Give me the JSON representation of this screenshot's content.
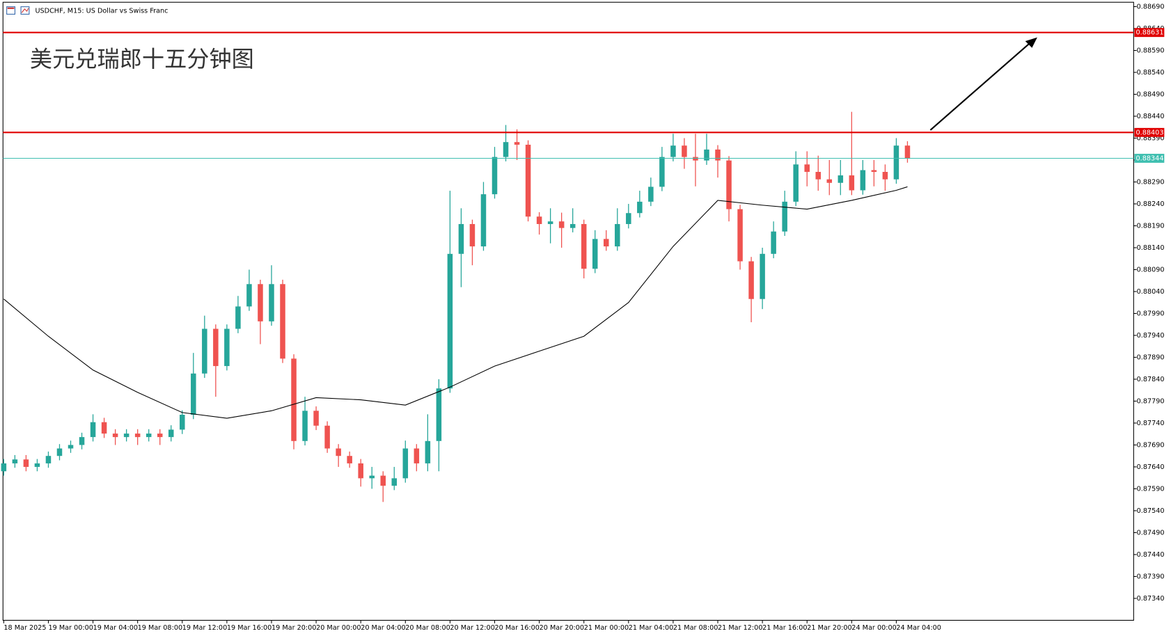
{
  "chart_data": {
    "type": "candlestick",
    "header": "USDCHF, M15:  US Dollar vs Swiss Franc",
    "title": "美元兑瑞郎十五分钟图",
    "up_color": "#26a69a",
    "down_color": "#ef5350",
    "ma_color": "#000000",
    "ylim": [
      0.8729,
      0.887
    ],
    "yticks": [
      {
        "value": 0.8869,
        "label": "0.88690"
      },
      {
        "value": 0.8864,
        "label": "0.88640"
      },
      {
        "value": 0.8859,
        "label": "0.88590"
      },
      {
        "value": 0.8854,
        "label": "0.88540"
      },
      {
        "value": 0.8849,
        "label": "0.88490"
      },
      {
        "value": 0.8844,
        "label": "0.88440"
      },
      {
        "value": 0.8839,
        "label": "0.88390"
      },
      {
        "value": 0.8834,
        "label": "0.88340"
      },
      {
        "value": 0.8829,
        "label": "0.88290"
      },
      {
        "value": 0.8824,
        "label": "0.88240"
      },
      {
        "value": 0.8819,
        "label": "0.88190"
      },
      {
        "value": 0.8814,
        "label": "0.88140"
      },
      {
        "value": 0.8809,
        "label": "0.88090"
      },
      {
        "value": 0.8804,
        "label": "0.88040"
      },
      {
        "value": 0.8799,
        "label": "0.87990"
      },
      {
        "value": 0.8794,
        "label": "0.87940"
      },
      {
        "value": 0.8789,
        "label": "0.87890"
      },
      {
        "value": 0.8784,
        "label": "0.87840"
      },
      {
        "value": 0.8779,
        "label": "0.87790"
      },
      {
        "value": 0.8774,
        "label": "0.87740"
      },
      {
        "value": 0.8769,
        "label": "0.87690"
      },
      {
        "value": 0.8764,
        "label": "0.87640"
      },
      {
        "value": 0.8759,
        "label": "0.87590"
      },
      {
        "value": 0.8754,
        "label": "0.87540"
      },
      {
        "value": 0.8749,
        "label": "0.87490"
      },
      {
        "value": 0.8744,
        "label": "0.87440"
      },
      {
        "value": 0.8739,
        "label": "0.87390"
      },
      {
        "value": 0.8734,
        "label": "0.87340"
      }
    ],
    "x_labels": [
      "18 Mar 2025",
      "19 Mar 00:00",
      "19 Mar 04:00",
      "19 Mar 08:00",
      "19 Mar 12:00",
      "19 Mar 16:00",
      "19 Mar 20:00",
      "20 Mar 00:00",
      "20 Mar 04:00",
      "20 Mar 08:00",
      "20 Mar 12:00",
      "20 Mar 16:00",
      "20 Mar 20:00",
      "21 Mar 00:00",
      "21 Mar 04:00",
      "21 Mar 08:00",
      "21 Mar 12:00",
      "21 Mar 16:00",
      "21 Mar 20:00",
      "24 Mar 00:00",
      "24 Mar 04:00"
    ],
    "levels": [
      {
        "value": 0.88631,
        "color": "#e00000"
      },
      {
        "value": 0.88403,
        "color": "#e00000"
      },
      {
        "value": 0.88344,
        "color": "#3fbfb0"
      }
    ],
    "candles": [
      [
        0.8763,
        0.87658,
        0.8762,
        0.87648
      ],
      [
        0.87648,
        0.87667,
        0.87638,
        0.87657
      ],
      [
        0.87657,
        0.87667,
        0.8763,
        0.8764
      ],
      [
        0.8764,
        0.87658,
        0.8763,
        0.87648
      ],
      [
        0.87648,
        0.87675,
        0.87638,
        0.87665
      ],
      [
        0.87665,
        0.87692,
        0.87655,
        0.87682
      ],
      [
        0.87682,
        0.877,
        0.87672,
        0.8769
      ],
      [
        0.8769,
        0.87718,
        0.8768,
        0.87708
      ],
      [
        0.87708,
        0.8776,
        0.87698,
        0.87742
      ],
      [
        0.87742,
        0.87752,
        0.87706,
        0.87716
      ],
      [
        0.87716,
        0.87726,
        0.8769,
        0.87708
      ],
      [
        0.87708,
        0.87726,
        0.87698,
        0.87716
      ],
      [
        0.87716,
        0.87726,
        0.8769,
        0.87708
      ],
      [
        0.87708,
        0.87726,
        0.87698,
        0.87716
      ],
      [
        0.87716,
        0.87726,
        0.8769,
        0.87708
      ],
      [
        0.87708,
        0.87735,
        0.87698,
        0.87725
      ],
      [
        0.87725,
        0.87769,
        0.87715,
        0.87759
      ],
      [
        0.87759,
        0.879,
        0.87749,
        0.87853
      ],
      [
        0.87853,
        0.87985,
        0.87843,
        0.87955
      ],
      [
        0.87955,
        0.87965,
        0.878,
        0.8787
      ],
      [
        0.8787,
        0.87965,
        0.8786,
        0.87955
      ],
      [
        0.87955,
        0.8803,
        0.87945,
        0.88006
      ],
      [
        0.88006,
        0.8809,
        0.87996,
        0.88057
      ],
      [
        0.88057,
        0.88067,
        0.8792,
        0.87972
      ],
      [
        0.87972,
        0.881,
        0.87962,
        0.88057
      ],
      [
        0.88057,
        0.88067,
        0.87877,
        0.87887
      ],
      [
        0.87887,
        0.87897,
        0.8768,
        0.87699
      ],
      [
        0.87699,
        0.878,
        0.87689,
        0.87768
      ],
      [
        0.87768,
        0.87778,
        0.87724,
        0.87734
      ],
      [
        0.87734,
        0.87744,
        0.87672,
        0.87682
      ],
      [
        0.87682,
        0.87692,
        0.8764,
        0.87665
      ],
      [
        0.87665,
        0.87675,
        0.87638,
        0.87648
      ],
      [
        0.87648,
        0.87658,
        0.87595,
        0.87614
      ],
      [
        0.87614,
        0.8764,
        0.8759,
        0.8762
      ],
      [
        0.8762,
        0.8763,
        0.8756,
        0.87597
      ],
      [
        0.87597,
        0.8764,
        0.87587,
        0.87614
      ],
      [
        0.87614,
        0.877,
        0.87604,
        0.87682
      ],
      [
        0.87682,
        0.87692,
        0.8763,
        0.87648
      ],
      [
        0.87648,
        0.8776,
        0.8763,
        0.87699
      ],
      [
        0.87699,
        0.8784,
        0.8763,
        0.87819
      ],
      [
        0.87819,
        0.8827,
        0.87809,
        0.88126
      ],
      [
        0.88126,
        0.8823,
        0.8805,
        0.88194
      ],
      [
        0.88194,
        0.88204,
        0.881,
        0.88143
      ],
      [
        0.88143,
        0.8829,
        0.88133,
        0.88262
      ],
      [
        0.88262,
        0.8837,
        0.88252,
        0.88347
      ],
      [
        0.88347,
        0.8842,
        0.88337,
        0.88381
      ],
      [
        0.88381,
        0.8841,
        0.8834,
        0.88375
      ],
      [
        0.88375,
        0.88385,
        0.882,
        0.88211
      ],
      [
        0.88211,
        0.88221,
        0.8817,
        0.88194
      ],
      [
        0.88194,
        0.8823,
        0.8815,
        0.882
      ],
      [
        0.882,
        0.8822,
        0.8814,
        0.88185
      ],
      [
        0.88185,
        0.8823,
        0.88175,
        0.88194
      ],
      [
        0.88194,
        0.88204,
        0.8807,
        0.88092
      ],
      [
        0.88092,
        0.8818,
        0.88082,
        0.8816
      ],
      [
        0.8816,
        0.8818,
        0.88133,
        0.88143
      ],
      [
        0.88143,
        0.8823,
        0.88133,
        0.88194
      ],
      [
        0.88194,
        0.8824,
        0.88184,
        0.88219
      ],
      [
        0.88219,
        0.8827,
        0.88209,
        0.88245
      ],
      [
        0.88245,
        0.883,
        0.88235,
        0.88279
      ],
      [
        0.88279,
        0.8837,
        0.88269,
        0.88347
      ],
      [
        0.88347,
        0.884,
        0.88337,
        0.88373
      ],
      [
        0.88373,
        0.8839,
        0.8832,
        0.88347
      ],
      [
        0.88347,
        0.884,
        0.8828,
        0.88339
      ],
      [
        0.88339,
        0.884,
        0.88329,
        0.88364
      ],
      [
        0.88364,
        0.88374,
        0.883,
        0.88339
      ],
      [
        0.88339,
        0.88349,
        0.882,
        0.88228
      ],
      [
        0.88228,
        0.88238,
        0.8809,
        0.88109
      ],
      [
        0.88109,
        0.88119,
        0.8797,
        0.88023
      ],
      [
        0.88023,
        0.8814,
        0.88,
        0.88126
      ],
      [
        0.88126,
        0.882,
        0.88116,
        0.88177
      ],
      [
        0.88177,
        0.8827,
        0.88167,
        0.88245
      ],
      [
        0.88245,
        0.8836,
        0.88235,
        0.8833
      ],
      [
        0.8833,
        0.8836,
        0.8828,
        0.88313
      ],
      [
        0.88313,
        0.8835,
        0.8827,
        0.88296
      ],
      [
        0.88296,
        0.8834,
        0.8826,
        0.88288
      ],
      [
        0.88288,
        0.8834,
        0.8826,
        0.88305
      ],
      [
        0.88305,
        0.8845,
        0.8826,
        0.88271
      ],
      [
        0.88271,
        0.8834,
        0.88261,
        0.88317
      ],
      [
        0.88317,
        0.8834,
        0.8828,
        0.88313
      ],
      [
        0.88313,
        0.8833,
        0.8827,
        0.88296
      ],
      [
        0.88296,
        0.8839,
        0.88286,
        0.88373
      ],
      [
        0.88373,
        0.88383,
        0.88334,
        0.88344
      ]
    ],
    "ma": {
      "x": [
        0,
        4,
        8,
        12,
        16,
        20,
        24,
        28,
        32,
        36,
        40,
        44,
        48,
        52,
        56,
        60,
        64,
        68,
        72,
        76,
        80,
        81
      ],
      "values": [
        0.88023,
        0.87938,
        0.87861,
        0.8781,
        0.87764,
        0.87751,
        0.87768,
        0.87798,
        0.87793,
        0.87781,
        0.87822,
        0.8787,
        0.87904,
        0.87938,
        0.88015,
        0.88143,
        0.88248,
        0.88237,
        0.88228,
        0.88248,
        0.88271,
        0.88279
      ]
    }
  }
}
